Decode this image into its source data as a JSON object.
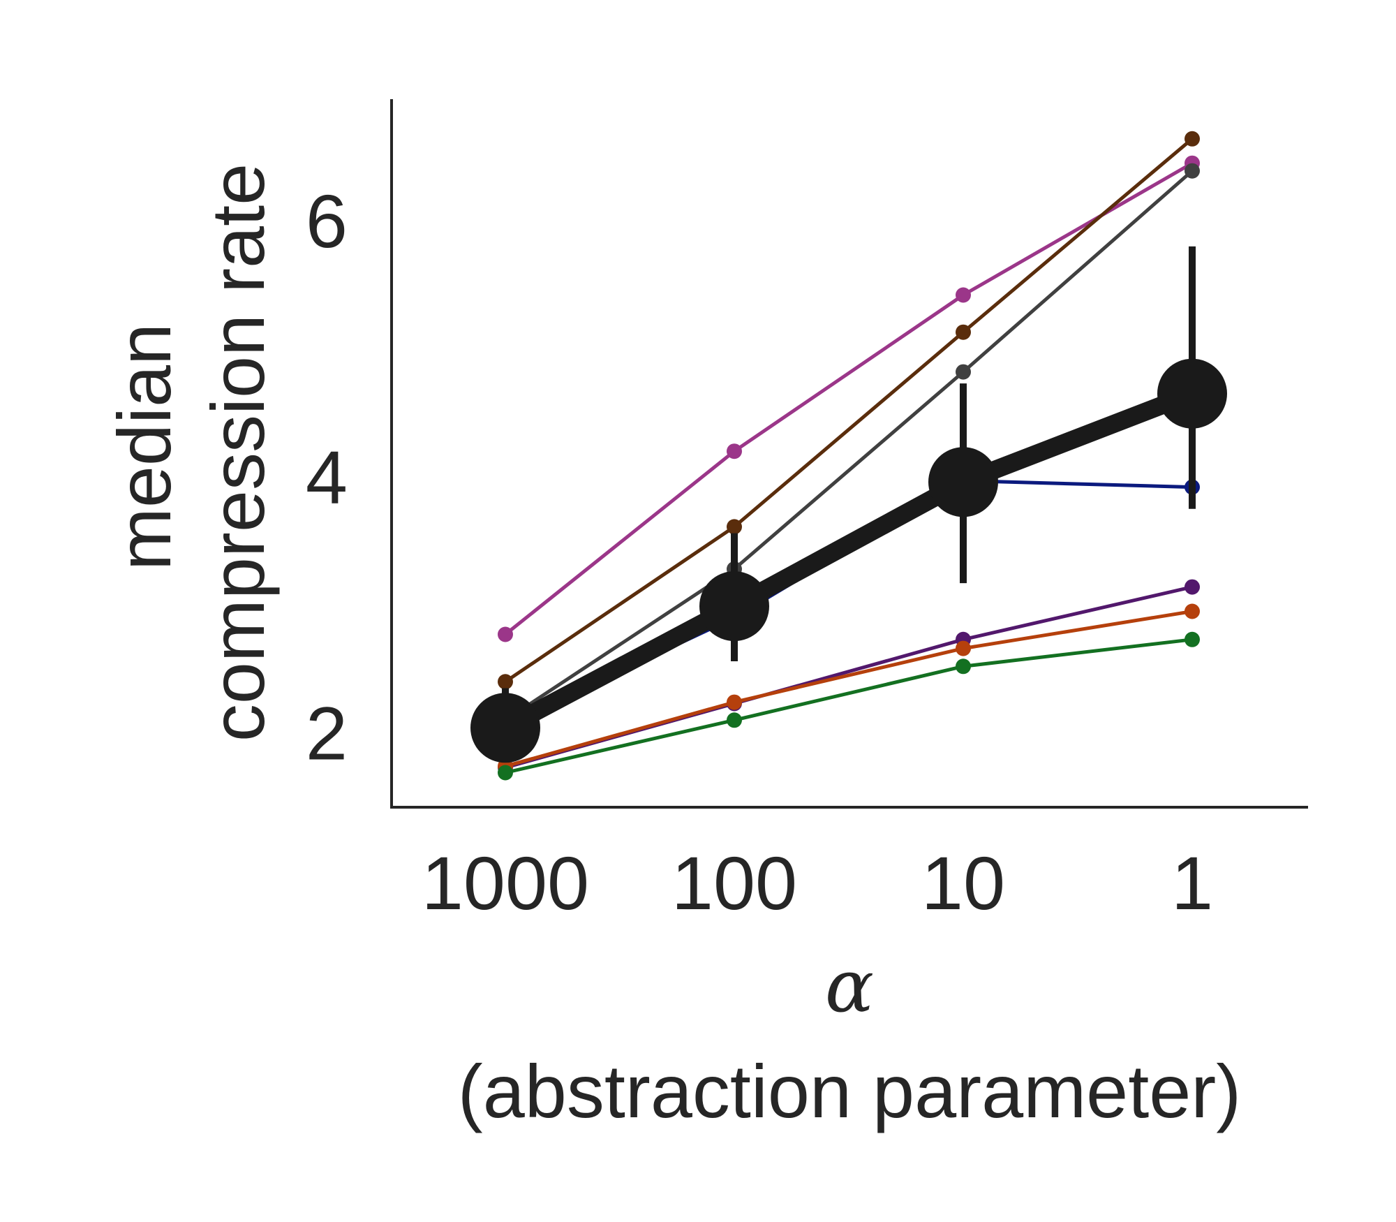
{
  "chart_data": {
    "type": "line",
    "xlabel_symbol": "α",
    "xlabel_text": "(abstraction parameter)",
    "ylabel_line1": "median",
    "ylabel_line2": "compression rate",
    "categories": [
      "1000",
      "100",
      "10",
      "1"
    ],
    "yticks": [
      2,
      4,
      6
    ],
    "ylim": [
      1.42,
      6.95
    ],
    "grid": false,
    "series": [
      {
        "color": "#9b3689",
        "values": [
          2.77,
          4.2,
          5.42,
          6.45
        ]
      },
      {
        "color": "#5a2d0c",
        "values": [
          2.4,
          3.61,
          5.13,
          6.64
        ]
      },
      {
        "color": "#404040",
        "values": [
          2.1,
          3.28,
          4.82,
          6.39
        ]
      },
      {
        "color": "#0b1a7e",
        "values": [
          2.06,
          2.9,
          3.97,
          3.92
        ]
      },
      {
        "color": "#52186c",
        "values": [
          1.73,
          2.23,
          2.73,
          3.14
        ]
      },
      {
        "color": "#b5400c",
        "values": [
          1.74,
          2.24,
          2.66,
          2.95
        ]
      },
      {
        "color": "#137021",
        "values": [
          1.69,
          2.1,
          2.52,
          2.73
        ]
      }
    ],
    "mean_series": {
      "color": "#1a1a1a",
      "values": [
        2.04,
        2.99,
        3.96,
        4.65
      ],
      "error_low": [
        1.9,
        2.56,
        3.17,
        3.75
      ],
      "error_high": [
        2.35,
        3.56,
        4.73,
        5.8
      ]
    }
  }
}
